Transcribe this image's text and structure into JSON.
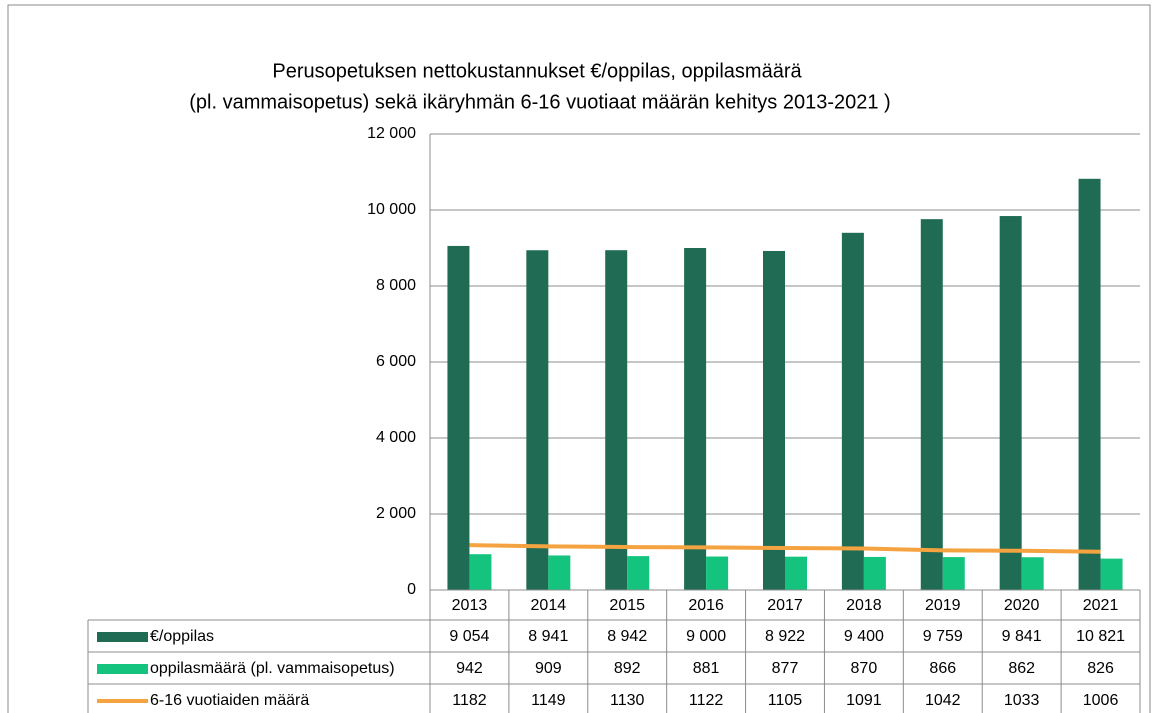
{
  "chart_data": {
    "type": "bar",
    "title": [
      "Perusopetuksen nettokustannukset €/oppilas, oppilasmäärä",
      "(pl. vammaisopetus) sekä ikäryhmän 6-16 vuotiaat määrän kehitys 2013-2021 )"
    ],
    "categories": [
      "2013",
      "2014",
      "2015",
      "2016",
      "2017",
      "2018",
      "2019",
      "2020",
      "2021"
    ],
    "series": [
      {
        "name": "€/oppilas",
        "type": "bar",
        "color": "#1f6b54",
        "values": [
          9054,
          8941,
          8942,
          9000,
          8922,
          9400,
          9759,
          9841,
          10821
        ],
        "value_labels": [
          "9 054",
          "8 941",
          "8 942",
          "9 000",
          "8 922",
          "9 400",
          "9 759",
          "9 841",
          "10 821"
        ]
      },
      {
        "name": "oppilasmäärä (pl. vammaisopetus)",
        "type": "bar",
        "color": "#14c47e",
        "values": [
          942,
          909,
          892,
          881,
          877,
          870,
          866,
          862,
          826
        ]
      },
      {
        "name": "6-16 vuotiaiden määrä",
        "type": "line",
        "color": "#f4a340",
        "values": [
          1182,
          1149,
          1130,
          1122,
          1105,
          1091,
          1042,
          1033,
          1006
        ]
      }
    ],
    "ylim": [
      0,
      12000
    ],
    "yticks": [
      0,
      {
        "value": 2000,
        "label": "2 000"
      },
      {
        "value": 4000,
        "label": "4 000"
      },
      {
        "value": 6000,
        "label": "6 000"
      },
      {
        "value": 8000,
        "label": "8 000"
      },
      {
        "value": 10000,
        "label": "10 000"
      },
      {
        "value": 12000,
        "label": "12 000"
      }
    ],
    "grid": true,
    "data_table": true
  }
}
